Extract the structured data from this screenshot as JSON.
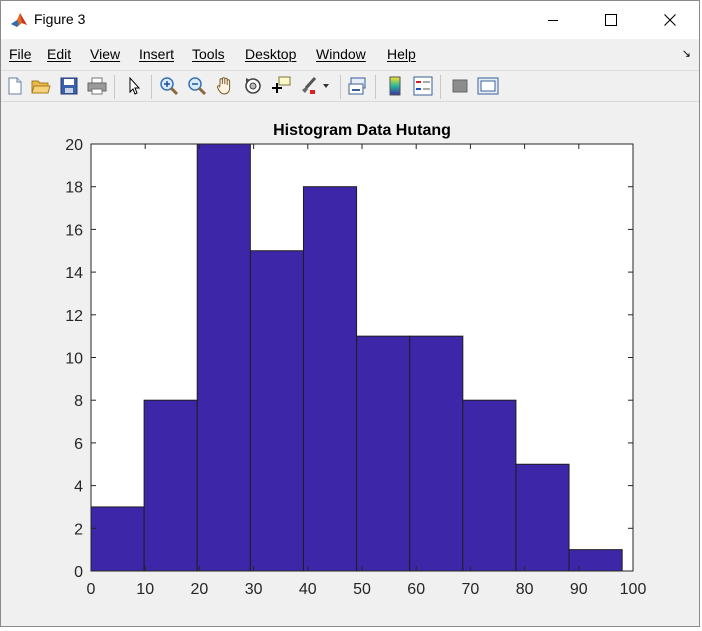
{
  "window": {
    "title": "Figure 3",
    "controls": {
      "minimize": "minimize",
      "maximize": "maximize",
      "close": "close"
    }
  },
  "menu": [
    "File",
    "Edit",
    "View",
    "Insert",
    "Tools",
    "Desktop",
    "Window",
    "Help"
  ],
  "toolbar": {
    "icons": [
      "new-figure-icon",
      "open-file-icon",
      "save-icon",
      "print-icon",
      "pointer-icon",
      "zoom-in-icon",
      "zoom-out-icon",
      "pan-icon",
      "rotate-3d-icon",
      "data-cursor-icon",
      "brush-icon",
      "link-plot-icon",
      "colorbar-icon",
      "legend-icon",
      "hide-plot-tools-icon",
      "show-plot-tools-icon"
    ]
  },
  "colors": {
    "bar_fill": "#3d27a8",
    "bar_edge": "#1e1e1e"
  },
  "chart_data": {
    "type": "bar",
    "title": "Histogram Data Hutang",
    "xlabel": "",
    "ylabel": "",
    "bin_edges": [
      0,
      9.8,
      19.6,
      29.4,
      39.2,
      49,
      58.8,
      68.6,
      78.4,
      88.2,
      98
    ],
    "values": [
      3,
      8,
      20,
      15,
      18,
      11,
      11,
      8,
      5,
      1
    ],
    "xlim": [
      0,
      100
    ],
    "ylim": [
      0,
      20
    ],
    "xticks": [
      0,
      10,
      20,
      30,
      40,
      50,
      60,
      70,
      80,
      90,
      100
    ],
    "yticks": [
      0,
      2,
      4,
      6,
      8,
      10,
      12,
      14,
      16,
      18,
      20
    ],
    "grid": false
  }
}
